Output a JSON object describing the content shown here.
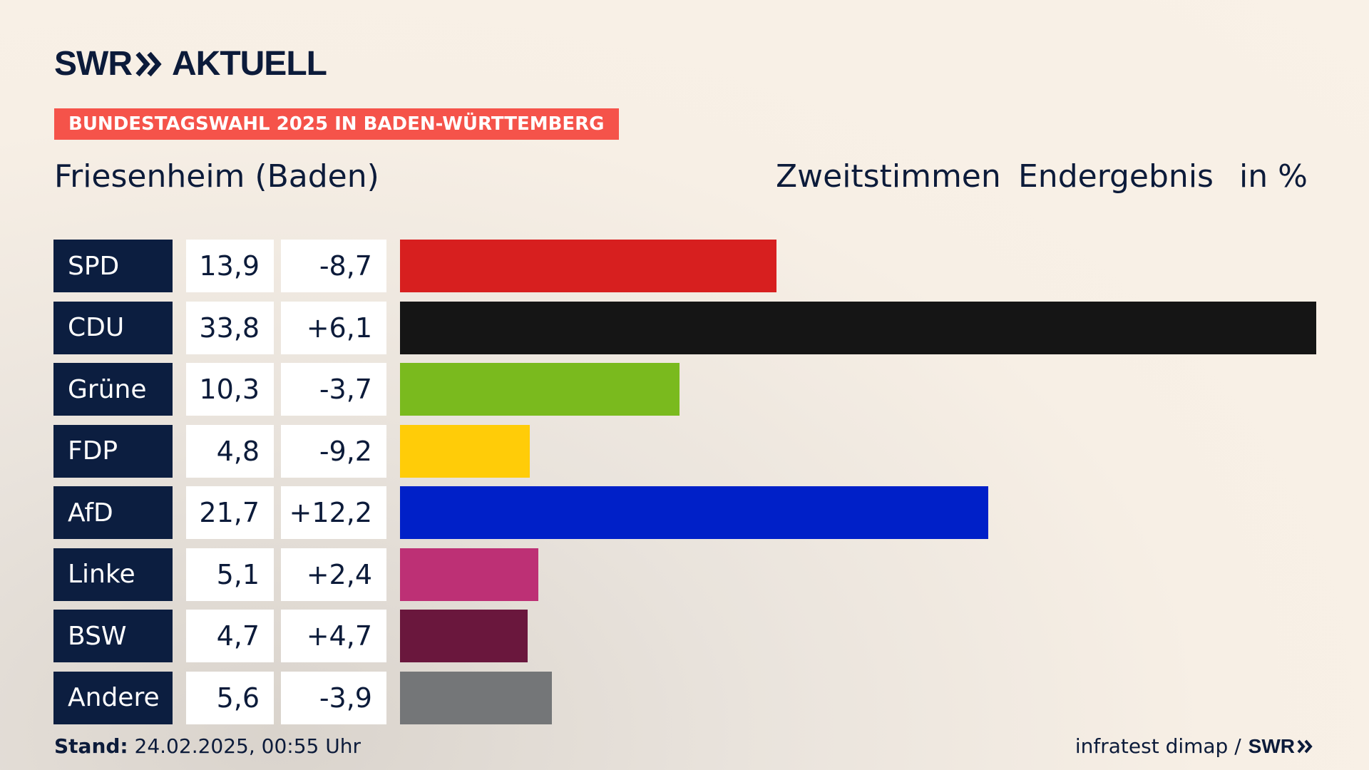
{
  "brand": {
    "logo_left": "SWR",
    "logo_right": "AKTUELL"
  },
  "banner": {
    "text": "BUNDESTAGSWAHL 2025 IN BADEN-WÜRTTEMBERG"
  },
  "header": {
    "location": "Friesenheim (Baden)",
    "vote_type": "Zweitstimmen",
    "status": "Endergebnis",
    "unit": "in %"
  },
  "chart_data": {
    "type": "bar",
    "orientation": "horizontal",
    "categories": [
      "SPD",
      "CDU",
      "Grüne",
      "FDP",
      "AfD",
      "Linke",
      "BSW",
      "Andere"
    ],
    "values": [
      13.9,
      33.8,
      10.3,
      4.8,
      21.7,
      5.1,
      4.7,
      5.6
    ],
    "value_labels": [
      "13,9",
      "33,8",
      "10,3",
      "4,8",
      "21,7",
      "5,1",
      "4,7",
      "5,6"
    ],
    "diff_labels": [
      "-8,7",
      "+6,1",
      "-3,7",
      "-9,2",
      "+12,2",
      "+2,4",
      "+4,7",
      "-3,9"
    ],
    "colors": [
      "#d71f1f",
      "#151515",
      "#7aba1e",
      "#ffcc08",
      "#0020c8",
      "#bd3075",
      "#6a173d",
      "#747678"
    ],
    "xlim": [
      0,
      33.8
    ]
  },
  "footer": {
    "stand_label": "Stand:",
    "stand_value": "24.02.2025, 00:55 Uhr",
    "source": "infratest dimap /",
    "source_logo": "SWR"
  }
}
